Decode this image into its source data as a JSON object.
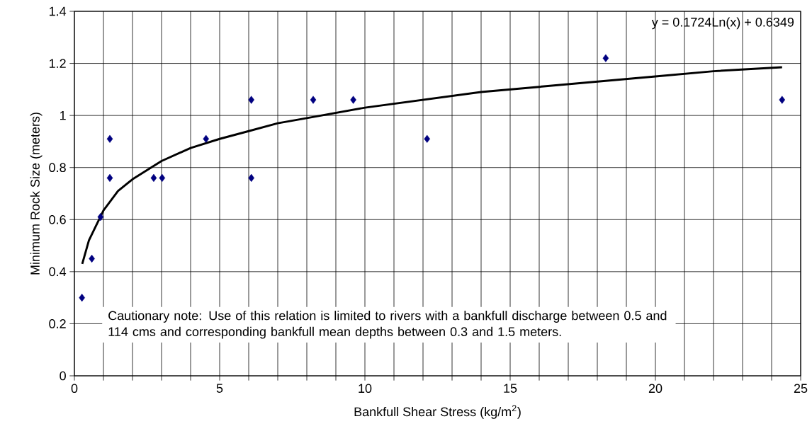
{
  "chart_data": {
    "type": "scatter",
    "xlabel": "Bankfull Shear Stress (kg/m$^{2}$)",
    "ylabel": "Minimum Rock Size (meters)",
    "annotations": [
      "y = 0.1724Ln(x) + 0.6349",
      "Cautionary note:  Use of this relation is limited to rivers with a bankfull discharge between 0.5 and 114 cms and corresponding bankfull mean depths between 0.3 and 1.5 meters."
    ],
    "series": [
      {
        "marker": "diamond",
        "color": "#000080",
        "x": [
          0.26,
          0.6,
          0.9,
          1.22,
          1.22,
          2.73,
          3.02,
          4.53,
          6.09,
          6.09,
          8.22,
          9.6,
          12.14,
          18.29,
          24.36
        ],
        "values": [
          0.3,
          0.45,
          0.61,
          0.76,
          0.91,
          0.76,
          0.76,
          0.91,
          1.06,
          0.76,
          1.06,
          1.06,
          0.91,
          1.22,
          1.06
        ]
      },
      {
        "type": "line",
        "marker": "none",
        "color": "#000000",
        "x": [
          0.27,
          0.5,
          1,
          1.5,
          2,
          3,
          4,
          5,
          6,
          7,
          8,
          10,
          12,
          14,
          16,
          18,
          20,
          22,
          24.36
        ],
        "values": [
          0.43,
          0.52,
          0.635,
          0.71,
          0.755,
          0.825,
          0.875,
          0.91,
          0.94,
          0.97,
          0.99,
          1.03,
          1.06,
          1.09,
          1.11,
          1.13,
          1.15,
          1.17,
          1.185
        ]
      }
    ],
    "xlim": [
      0,
      25
    ],
    "xticks": [
      0,
      {
        "value": 1,
        "label": null
      },
      {
        "value": 2,
        "label": null
      },
      {
        "value": 3,
        "label": null
      },
      {
        "value": 4,
        "label": null
      },
      5,
      {
        "value": 6,
        "label": null
      },
      {
        "value": 7,
        "label": null
      },
      {
        "value": 8,
        "label": null
      },
      {
        "value": 9,
        "label": null
      },
      10,
      {
        "value": 11,
        "label": null
      },
      {
        "value": 12,
        "label": null
      },
      {
        "value": 13,
        "label": null
      },
      {
        "value": 14,
        "label": null
      },
      15,
      {
        "value": 16,
        "label": null
      },
      {
        "value": 17,
        "label": null
      },
      {
        "value": 18,
        "label": null
      },
      {
        "value": 19,
        "label": null
      },
      20,
      {
        "value": 21,
        "label": null
      },
      {
        "value": 22,
        "label": null
      },
      {
        "value": 23,
        "label": null
      },
      {
        "value": 24,
        "label": null
      },
      25
    ],
    "ylim": [
      0,
      1.4
    ],
    "yticks": [
      0,
      0.2,
      0.4,
      0.6,
      0.8,
      1,
      1.2,
      1.4
    ],
    "grid": true,
    "line_style": "solid"
  }
}
